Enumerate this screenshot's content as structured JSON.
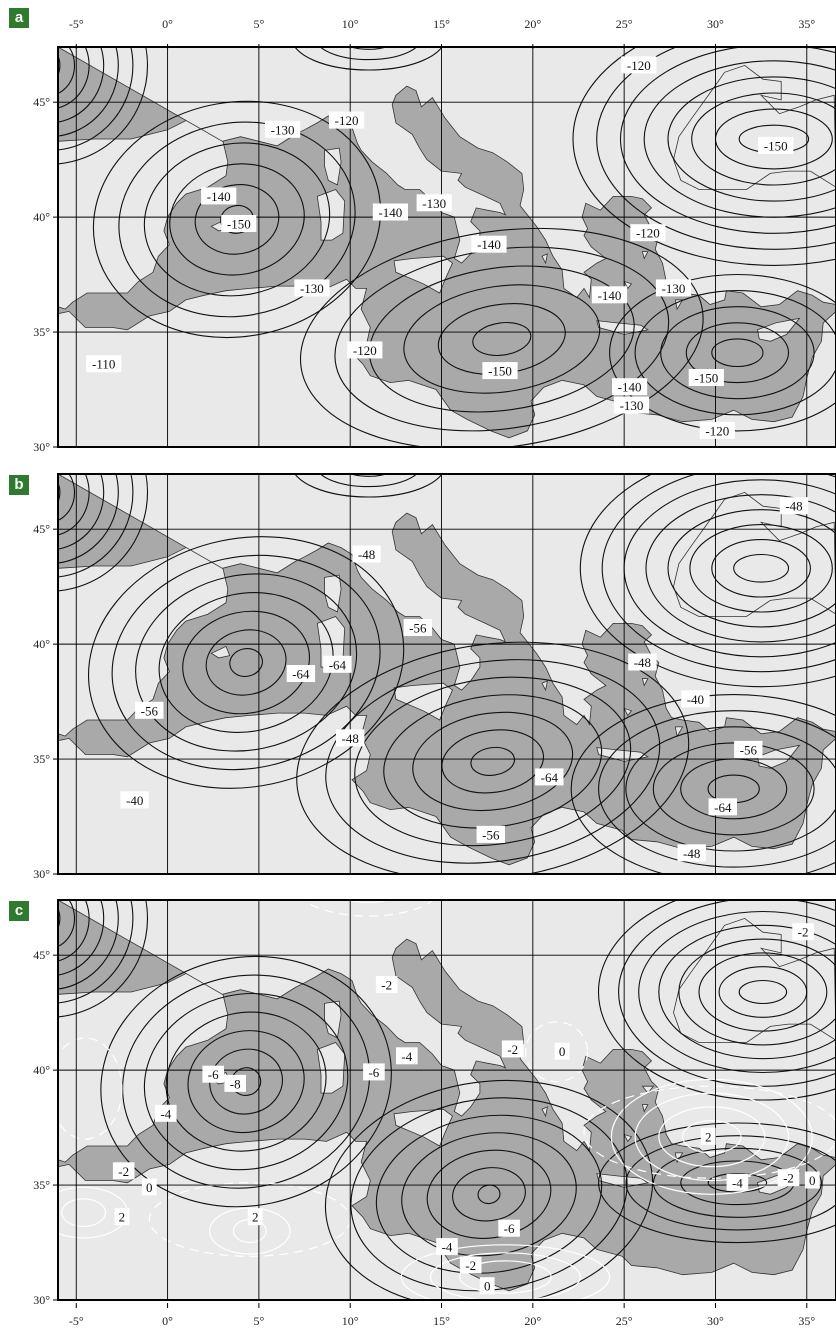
{
  "figure": {
    "lon_ticks": [
      "-5°",
      "0°",
      "5°",
      "10°",
      "15°",
      "20°",
      "25°",
      "30°",
      "35°"
    ],
    "lat_ticks": [
      "45°",
      "40°",
      "35°",
      "30°"
    ],
    "colors": {
      "sea": "#a9a9a9",
      "land": "#e9e9e9",
      "contour": "#111111",
      "contour_white": "#ffffff",
      "panel_label_bg": "#2f7a2f"
    },
    "panels": [
      {
        "label": "a",
        "contour_labels": [
          {
            "text": "-120",
            "lon": 25.8,
            "lat": 46.6
          },
          {
            "text": "-130",
            "lon": 6.3,
            "lat": 43.8
          },
          {
            "text": "-120",
            "lon": 9.8,
            "lat": 44.2
          },
          {
            "text": "-150",
            "lon": 33.3,
            "lat": 43.1
          },
          {
            "text": "-140",
            "lon": 2.8,
            "lat": 40.9
          },
          {
            "text": "-150",
            "lon": 3.9,
            "lat": 39.7
          },
          {
            "text": "-130",
            "lon": 14.6,
            "lat": 40.6
          },
          {
            "text": "-140",
            "lon": 12.2,
            "lat": 40.2
          },
          {
            "text": "-140",
            "lon": 17.6,
            "lat": 38.8
          },
          {
            "text": "-120",
            "lon": 26.3,
            "lat": 39.3
          },
          {
            "text": "-130",
            "lon": 7.9,
            "lat": 36.9
          },
          {
            "text": "-140",
            "lon": 24.2,
            "lat": 36.6
          },
          {
            "text": "-130",
            "lon": 27.7,
            "lat": 36.9
          },
          {
            "text": "-120",
            "lon": 10.8,
            "lat": 34.2
          },
          {
            "text": "-110",
            "lon": -3.5,
            "lat": 33.6
          },
          {
            "text": "-150",
            "lon": 18.2,
            "lat": 33.3
          },
          {
            "text": "-150",
            "lon": 29.5,
            "lat": 33.0
          },
          {
            "text": "-140",
            "lon": 25.3,
            "lat": 32.6
          },
          {
            "text": "-130",
            "lon": 25.4,
            "lat": 31.8
          },
          {
            "text": "-120",
            "lon": 30.1,
            "lat": 30.7
          }
        ]
      },
      {
        "label": "b",
        "contour_labels": [
          {
            "text": "-48",
            "lon": 34.3,
            "lat": 46.0
          },
          {
            "text": "-48",
            "lon": 10.9,
            "lat": 43.9
          },
          {
            "text": "-56",
            "lon": 13.7,
            "lat": 40.7
          },
          {
            "text": "-64",
            "lon": 7.3,
            "lat": 38.7
          },
          {
            "text": "-64",
            "lon": 9.3,
            "lat": 39.1
          },
          {
            "text": "-48",
            "lon": 26.0,
            "lat": 39.2
          },
          {
            "text": "-40",
            "lon": 28.9,
            "lat": 37.6
          },
          {
            "text": "-56",
            "lon": -1.0,
            "lat": 37.1
          },
          {
            "text": "-48",
            "lon": 10.0,
            "lat": 35.9
          },
          {
            "text": "-56",
            "lon": 31.8,
            "lat": 35.4
          },
          {
            "text": "-64",
            "lon": 20.9,
            "lat": 34.2
          },
          {
            "text": "-40",
            "lon": -1.8,
            "lat": 33.2
          },
          {
            "text": "-64",
            "lon": 30.4,
            "lat": 32.9
          },
          {
            "text": "-56",
            "lon": 17.7,
            "lat": 31.7
          },
          {
            "text": "-48",
            "lon": 28.7,
            "lat": 30.9
          }
        ]
      },
      {
        "label": "c",
        "contour_labels": [
          {
            "text": "-2",
            "lon": 34.8,
            "lat": 46.0
          },
          {
            "text": "-2",
            "lon": 12.0,
            "lat": 43.7
          },
          {
            "text": "-2",
            "lon": 18.9,
            "lat": 40.9
          },
          {
            "text": "0",
            "lon": 21.6,
            "lat": 40.8
          },
          {
            "text": "-4",
            "lon": 13.1,
            "lat": 40.6
          },
          {
            "text": "-6",
            "lon": 2.5,
            "lat": 39.8
          },
          {
            "text": "-8",
            "lon": 3.7,
            "lat": 39.4
          },
          {
            "text": "-6",
            "lon": 11.3,
            "lat": 39.9
          },
          {
            "text": "-4",
            "lon": -0.1,
            "lat": 38.1
          },
          {
            "text": "2",
            "lon": 29.6,
            "lat": 37.1
          },
          {
            "text": "-2",
            "lon": -2.4,
            "lat": 35.6
          },
          {
            "text": "0",
            "lon": -1.0,
            "lat": 34.9
          },
          {
            "text": "-4",
            "lon": 31.2,
            "lat": 35.1
          },
          {
            "text": "-2",
            "lon": 34.0,
            "lat": 35.3
          },
          {
            "text": "0",
            "lon": 35.3,
            "lat": 35.2
          },
          {
            "text": "2",
            "lon": -2.5,
            "lat": 33.6
          },
          {
            "text": "2",
            "lon": 4.8,
            "lat": 33.6
          },
          {
            "text": "-6",
            "lon": 18.7,
            "lat": 33.1
          },
          {
            "text": "-4",
            "lon": 15.3,
            "lat": 32.3
          },
          {
            "text": "-2",
            "lon": 16.6,
            "lat": 31.5
          },
          {
            "text": "0",
            "lon": 17.5,
            "lat": 30.6
          }
        ]
      }
    ]
  }
}
